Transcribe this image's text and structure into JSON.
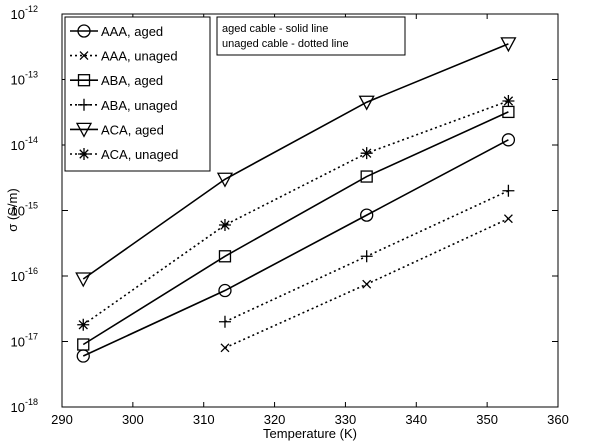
{
  "chart_data": {
    "type": "line",
    "xlabel": "Temperature (K)",
    "ylabel": "σ (S/m)",
    "xlim": [
      290,
      360
    ],
    "ylim": [
      1e-18,
      1e-12
    ],
    "yscale": "log",
    "x_ticks": [
      290,
      300,
      310,
      320,
      330,
      340,
      350,
      360
    ],
    "y_tick_base": "10",
    "y_tick_exponents": [
      "-18",
      "-17",
      "-16",
      "-15",
      "-14",
      "-13",
      "-12"
    ],
    "grid": false,
    "legend_position": "top-left",
    "annotation": [
      "aged cable - solid line",
      "unaged cable - dotted line"
    ],
    "series": [
      {
        "name": "AAA, aged",
        "marker": "circle",
        "line": "solid",
        "x": [
          293,
          313,
          333,
          353
        ],
        "y": [
          6e-18,
          6e-17,
          8.5e-16,
          1.2e-14
        ]
      },
      {
        "name": "AAA, unaged",
        "marker": "x",
        "line": "dotted",
        "x": [
          313,
          333,
          353
        ],
        "y": [
          8e-18,
          7.5e-17,
          7.5e-16
        ]
      },
      {
        "name": "ABA, aged",
        "marker": "square",
        "line": "solid",
        "x": [
          293,
          313,
          333,
          353
        ],
        "y": [
          9e-18,
          2e-16,
          3.3e-15,
          3.2e-14
        ]
      },
      {
        "name": "ABA, unaged",
        "marker": "plus",
        "line": "dotted",
        "x": [
          313,
          333,
          353
        ],
        "y": [
          2e-17,
          2e-16,
          2e-15
        ]
      },
      {
        "name": "ACA, aged",
        "marker": "triangle-down",
        "line": "solid",
        "x": [
          293,
          313,
          333,
          353
        ],
        "y": [
          9e-17,
          3e-15,
          4.5e-14,
          3.5e-13
        ]
      },
      {
        "name": "ACA, unaged",
        "marker": "asterisk",
        "line": "dotted",
        "x": [
          293,
          313,
          333,
          353
        ],
        "y": [
          1.8e-17,
          6e-16,
          7.5e-15,
          4.7e-14
        ]
      }
    ]
  }
}
